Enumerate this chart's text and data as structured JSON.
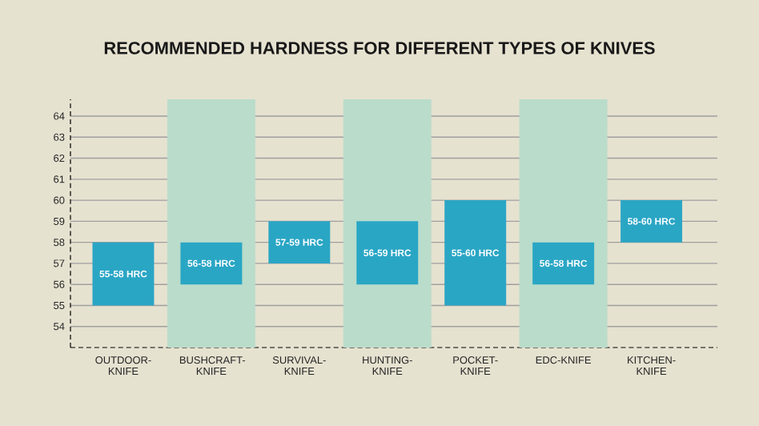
{
  "chart_data": {
    "type": "bar",
    "title": "RECOMMENDED HARDNESS FOR DIFFERENT TYPES OF KNIVES",
    "categories": [
      "OUTDOOR-KNIFE",
      "BUSHCRAFT-KNIFE",
      "SURVIVAL-KNIFE",
      "HUNTING-KNIFE",
      "POCKET-KNIFE",
      "EDC-KNIFE",
      "KITCHEN-KNIFE"
    ],
    "base": [
      55,
      56,
      57,
      56,
      55,
      56,
      58
    ],
    "values": [
      3,
      2,
      2,
      3,
      5,
      2,
      2
    ],
    "value_labels": [
      "55-58 HRC",
      "56-58 HRC",
      "57-59 HRC",
      "56-59 HRC",
      "55-60 HRC",
      "56-58 HRC",
      "58-60 HRC"
    ],
    "color": "#2aa6c5",
    "ylim": [
      53,
      64.8
    ],
    "yticks": [
      54,
      55,
      56,
      57,
      58,
      59,
      60,
      61,
      62,
      63,
      64
    ],
    "grid": "y",
    "bands": [
      {
        "axis": "x",
        "from": "BUSHCRAFT-KNIFE",
        "to": "BUSHCRAFT-KNIFE",
        "color": "#b9dccb"
      },
      {
        "axis": "x",
        "from": "HUNTING-KNIFE",
        "to": "HUNTING-KNIFE",
        "color": "#b9dccb"
      },
      {
        "axis": "x",
        "from": "EDC-KNIFE",
        "to": "EDC-KNIFE",
        "color": "#b9dccb"
      }
    ]
  }
}
